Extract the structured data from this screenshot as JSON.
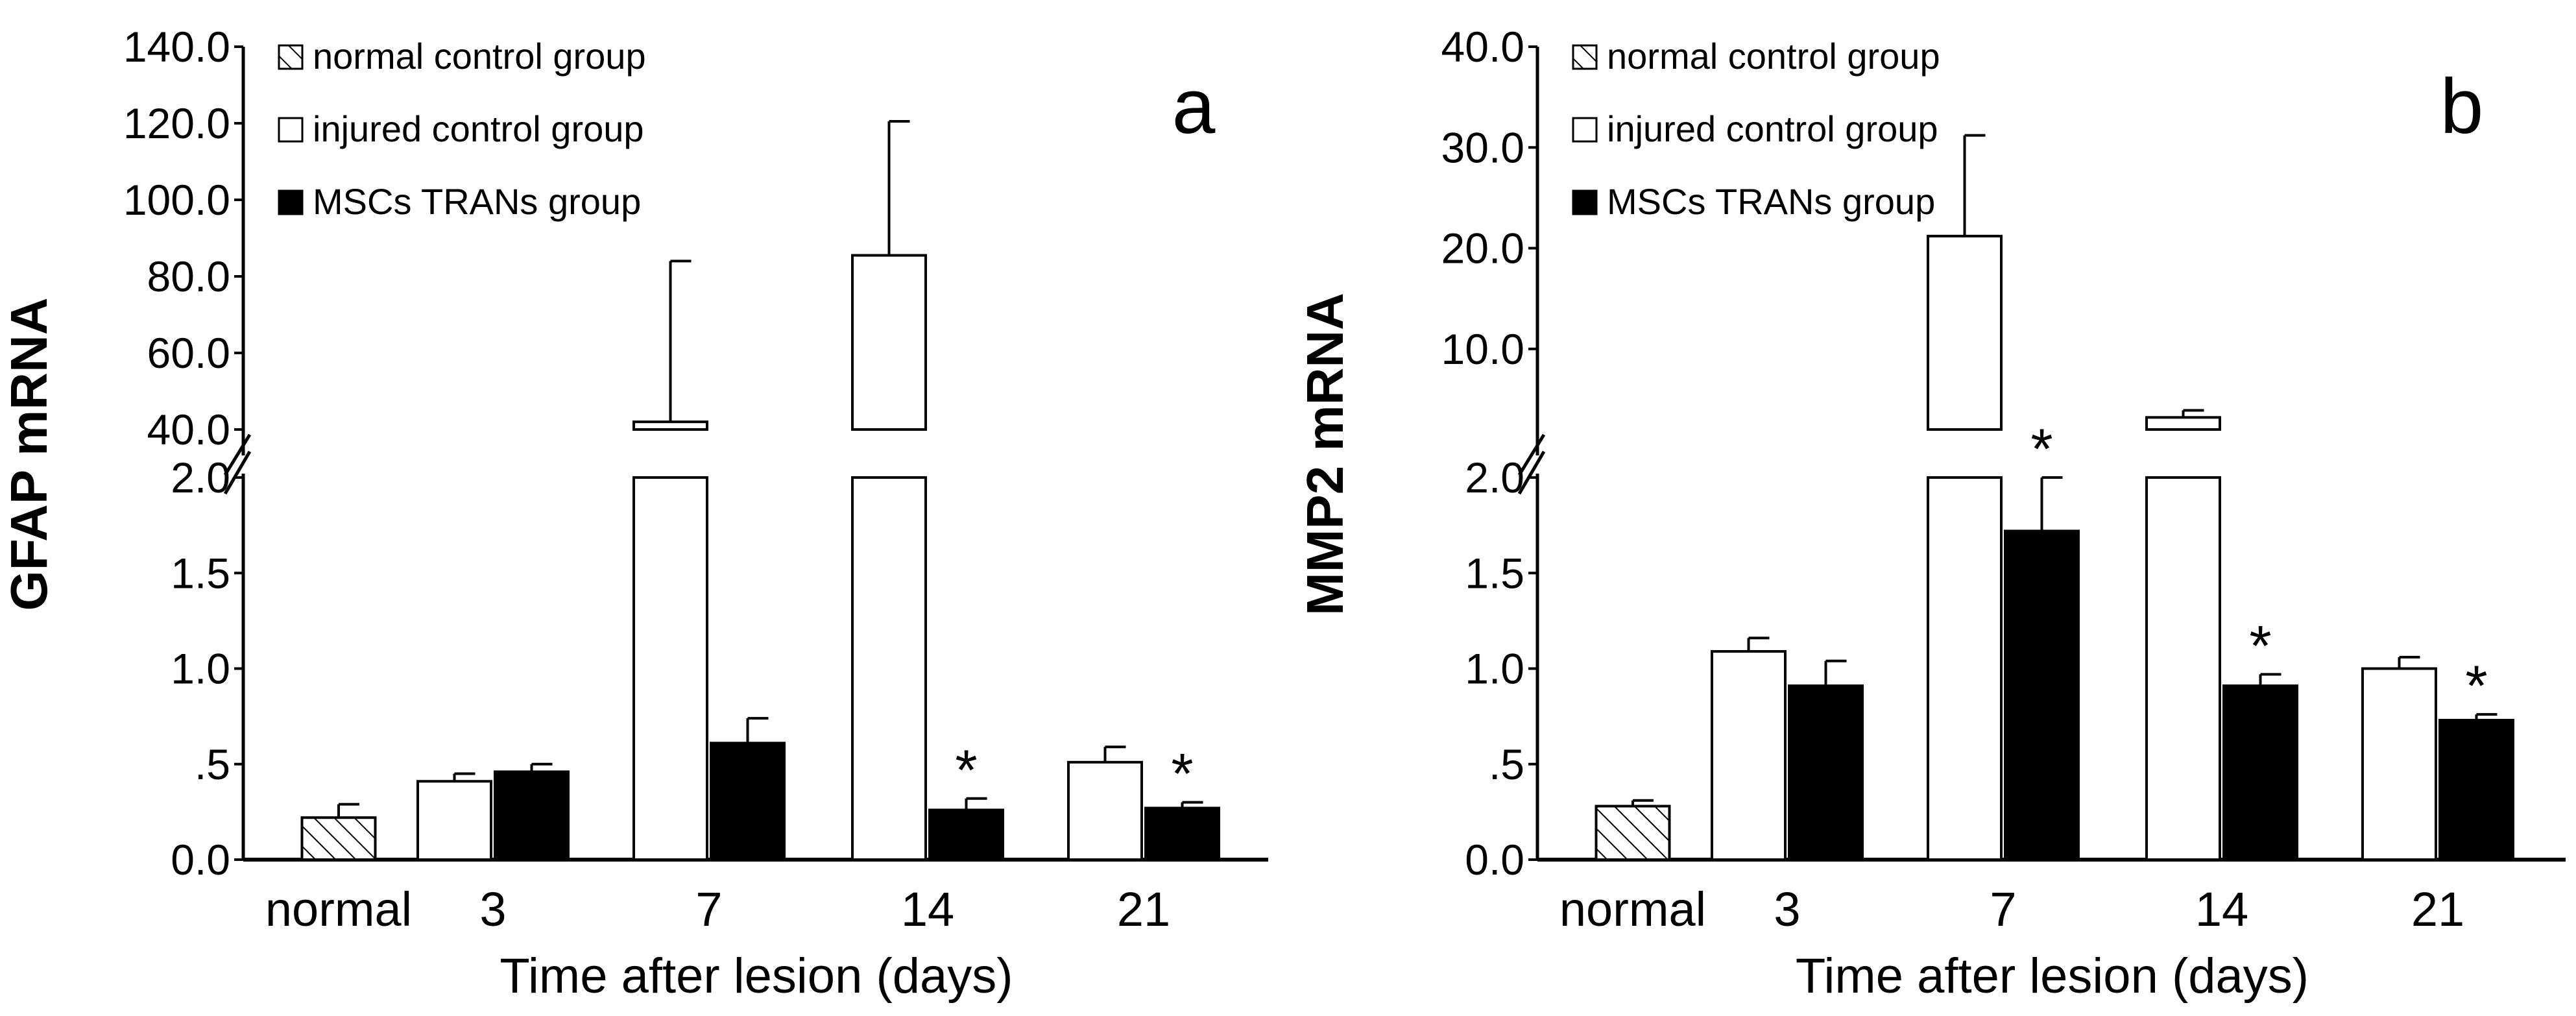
{
  "chart_data": [
    {
      "type": "bar",
      "panel_label": "a",
      "ylabel": "GFAP mRNA",
      "xlabel": "Time after lesion (days)",
      "categories": [
        "normal",
        "3",
        "7",
        "14",
        "21"
      ],
      "axis_break": true,
      "ylim_lower": [
        0,
        2
      ],
      "ylim_upper": [
        40,
        140
      ],
      "yticks_lower": [
        "0.0",
        ".5",
        "1.0",
        "1.5",
        "2.0"
      ],
      "yticks_upper": [
        "40.0",
        "60.0",
        "80.0",
        "100.0",
        "120.0",
        "140.0"
      ],
      "legend": [
        {
          "name": "normal control group",
          "pattern": "hatched"
        },
        {
          "name": "injured control group",
          "pattern": "white"
        },
        {
          "name": "MSCs TRANs group",
          "pattern": "black"
        }
      ],
      "legend_position": "top-left",
      "series": [
        {
          "name": "normal control group",
          "values": [
            0.22,
            null,
            null,
            null,
            null
          ],
          "errors": [
            0.07,
            null,
            null,
            null,
            null
          ]
        },
        {
          "name": "injured control group",
          "values": [
            null,
            0.41,
            42.0,
            85.5,
            0.51
          ],
          "errors": [
            null,
            0.04,
            42.0,
            35.0,
            0.08
          ]
        },
        {
          "name": "MSCs TRANs group",
          "values": [
            null,
            0.46,
            0.61,
            0.26,
            0.27
          ],
          "errors": [
            null,
            0.04,
            0.13,
            0.06,
            0.03
          ]
        }
      ],
      "significance": [
        {
          "category": "14",
          "series": "MSCs TRANs group",
          "mark": "*"
        },
        {
          "category": "21",
          "series": "MSCs TRANs group",
          "mark": "*"
        }
      ]
    },
    {
      "type": "bar",
      "panel_label": "b",
      "ylabel": "MMP2 mRNA",
      "xlabel": "Time after lesion (days)",
      "categories": [
        "normal",
        "3",
        "7",
        "14",
        "21"
      ],
      "axis_break": true,
      "ylim_lower": [
        0,
        2
      ],
      "ylim_upper": [
        2,
        40
      ],
      "yticks_lower": [
        "0.0",
        ".5",
        "1.0",
        "1.5",
        "2.0"
      ],
      "yticks_upper": [
        "10.0",
        "20.0",
        "30.0",
        "40.0"
      ],
      "legend": [
        {
          "name": "normal control group",
          "pattern": "hatched"
        },
        {
          "name": "injured control group",
          "pattern": "white"
        },
        {
          "name": "MSCs TRANs group",
          "pattern": "black"
        }
      ],
      "legend_position": "top-left",
      "series": [
        {
          "name": "normal control group",
          "values": [
            0.28,
            null,
            null,
            null,
            null
          ],
          "errors": [
            0.03,
            null,
            null,
            null,
            null
          ]
        },
        {
          "name": "injured control group",
          "values": [
            null,
            1.09,
            21.2,
            3.2,
            1.0
          ],
          "errors": [
            null,
            0.07,
            10.0,
            0.7,
            0.06
          ]
        },
        {
          "name": "MSCs TRANs group",
          "values": [
            null,
            0.91,
            1.72,
            0.91,
            0.73
          ],
          "errors": [
            null,
            0.13,
            0.28,
            0.06,
            0.03
          ]
        }
      ],
      "significance": [
        {
          "category": "7",
          "series": "MSCs TRANs group",
          "mark": "*"
        },
        {
          "category": "14",
          "series": "MSCs TRANs group",
          "mark": "*"
        },
        {
          "category": "21",
          "series": "MSCs TRANs group",
          "mark": "*"
        }
      ]
    }
  ]
}
